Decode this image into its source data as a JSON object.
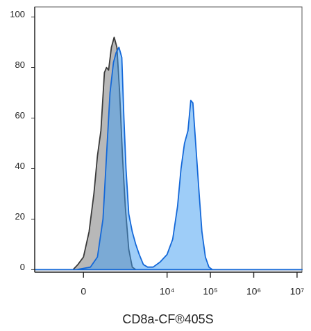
{
  "chart_data": {
    "type": "histogram-overlay",
    "xlabel": "CD8a-CF®405S",
    "xscale": "arcsinh",
    "xlim": [
      -1560,
      13000000
    ],
    "xticks": [
      0,
      {
        "value": 10000,
        "label": "10⁴"
      },
      {
        "value": 100000,
        "label": "10⁵"
      },
      {
        "value": 1000000,
        "label": "10⁶"
      },
      {
        "value": 10000000,
        "label": "10⁷"
      }
    ],
    "ylim": [
      -1,
      104
    ],
    "yticks": [
      0,
      20,
      40,
      60,
      80,
      100
    ],
    "series": [
      {
        "color": "#9a9a9a",
        "line_color": "#3a3a3a",
        "x": [
          -1560,
          -137,
          -71,
          0,
          71,
          137,
          191,
          250,
          319,
          365,
          416,
          492,
          578,
          675,
          787,
          919,
          1072,
          1295,
          1563,
          1885,
          13000000
        ],
        "values": [
          0,
          0,
          2,
          5,
          15,
          30,
          45,
          55,
          78,
          80,
          79,
          88,
          92,
          88,
          70,
          45,
          25,
          8,
          1,
          0,
          0
        ]
      },
      {
        "color": "#3e9cf2",
        "line_color": "#1468d8",
        "x": [
          -1560,
          -89,
          89,
          191,
          290,
          365,
          453,
          555,
          650,
          757,
          886,
          994,
          1114,
          1295,
          1563,
          1885,
          2270,
          2834,
          3549,
          4770,
          6900,
          10000,
          13470,
          17440,
          20990,
          25240,
          30360,
          35250,
          39400,
          45700,
          55000,
          63700,
          76600,
          92400,
          111200,
          13000000
        ],
        "values": [
          0,
          0,
          1,
          5,
          20,
          45,
          70,
          82,
          86,
          88,
          84,
          60,
          40,
          22,
          15,
          10,
          6,
          2,
          1,
          1,
          3,
          6,
          12,
          25,
          40,
          50,
          55,
          67,
          66,
          50,
          30,
          15,
          5,
          1,
          0,
          0
        ]
      }
    ]
  }
}
